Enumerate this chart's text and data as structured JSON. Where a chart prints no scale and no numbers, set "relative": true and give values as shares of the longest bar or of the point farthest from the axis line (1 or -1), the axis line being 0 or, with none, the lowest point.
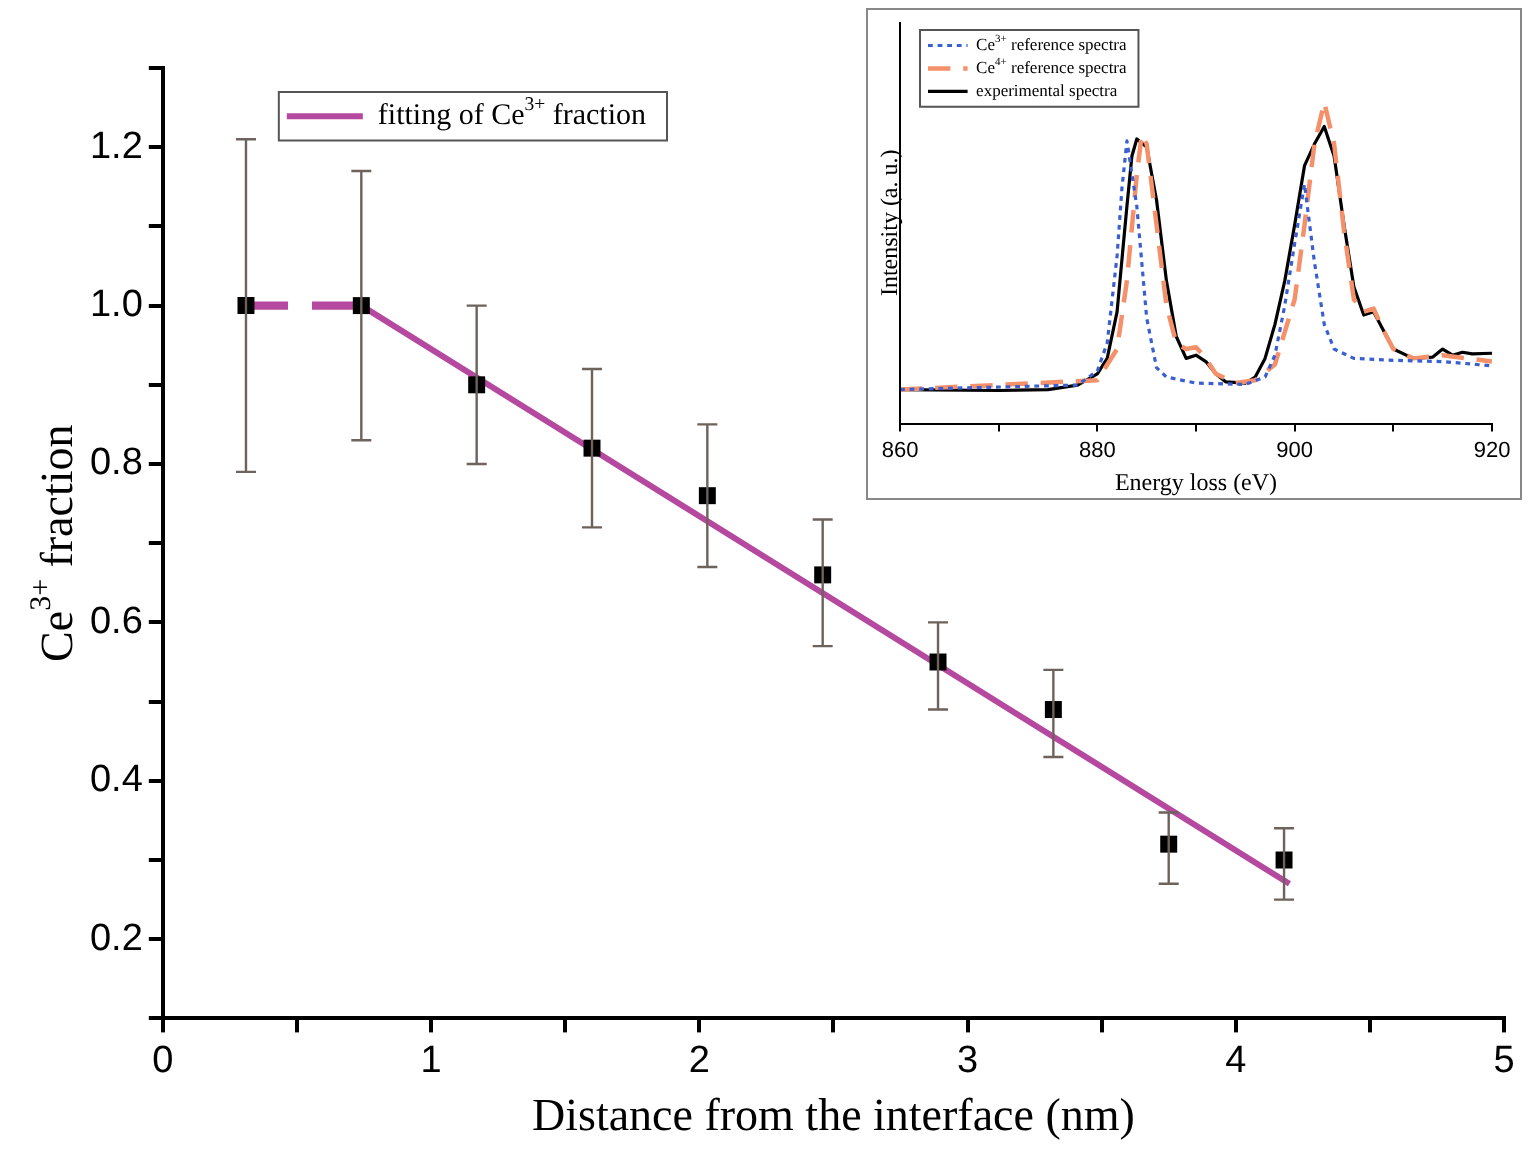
{
  "chart_data": [
    {
      "type": "scatter",
      "xlabel": "Distance from the interface (nm)",
      "ylabel": "Ce$^{3+}$ fraction",
      "xlim": [
        0,
        5
      ],
      "xticks": [
        0,
        {
          "value": 0.5,
          "label": null
        },
        1,
        {
          "value": 1.5,
          "label": null
        },
        2,
        {
          "value": 2.5,
          "label": null
        },
        3,
        {
          "value": 3.5,
          "label": null
        },
        4,
        {
          "value": 4.5,
          "label": null
        },
        5
      ],
      "ylim": [
        0.1,
        1.3
      ],
      "yticks": [
        {
          "value": 0.1,
          "label": null
        },
        0.2,
        {
          "value": 0.3,
          "label": null
        },
        0.4,
        {
          "value": 0.5,
          "label": null
        },
        0.6,
        {
          "value": 0.7,
          "label": null
        },
        0.8,
        {
          "value": 0.9,
          "label": null
        },
        {
          "value": 1,
          "label": "1.0"
        },
        {
          "value": 1.1,
          "label": null
        },
        1.2,
        {
          "value": 1.3,
          "label": null
        }
      ],
      "grid": false,
      "legend": "top left",
      "series": [
        {
          "color": "#000000",
          "marker": "square",
          "x": [
            0.31,
            0.74,
            1.17,
            1.6,
            2.03,
            2.46,
            2.89,
            3.32,
            3.75,
            4.18
          ],
          "values": [
            1.0,
            1.0,
            0.9,
            0.82,
            0.76,
            0.66,
            0.55,
            0.49,
            0.32,
            0.3
          ],
          "errors": [
            [
              0.79,
              1.21
            ],
            [
              0.83,
              1.17
            ],
            [
              0.8,
              1.0
            ],
            [
              0.72,
              0.92
            ],
            [
              0.67,
              0.85
            ],
            [
              0.57,
              0.73
            ],
            [
              0.49,
              0.6
            ],
            [
              0.43,
              0.54
            ],
            [
              0.27,
              0.36
            ],
            [
              0.25,
              0.34
            ]
          ]
        },
        {
          "type": "line",
          "name": "fitting of Ce$^{3+}$ fraction",
          "color": "#b5489f",
          "line_style": "solid",
          "x": [
            0.74,
            4.2
          ],
          "values": [
            1.0,
            0.27
          ]
        },
        {
          "type": "line",
          "color": "#b5489f",
          "line_style": "dashed",
          "x": [
            0.31,
            0.74
          ],
          "values": [
            1.0,
            1.0
          ]
        }
      ]
    },
    {
      "type": "line",
      "xlabel": "Energy loss (eV)",
      "ylabel": "Intensity (a. u.)",
      "relative": true,
      "tick_labels": "x",
      "xlim": [
        860,
        920
      ],
      "xticks": [
        860,
        {
          "value": 870,
          "label": null
        },
        880,
        {
          "value": 890,
          "label": null
        },
        900,
        {
          "value": 910,
          "label": null
        },
        920
      ],
      "grid": false,
      "legend": "top left",
      "series": [
        {
          "name": "Ce$^{3+}$ reference spectra",
          "color": "#3a5fd0",
          "line_style": "dotted",
          "x": [
            860,
            878,
            880,
            881,
            882,
            882.5,
            883,
            884,
            885,
            886,
            887,
            890,
            895,
            897,
            898,
            899,
            900,
            901,
            902,
            903,
            904,
            906,
            910,
            915,
            920
          ],
          "values": [
            0.106,
            0.12,
            0.164,
            0.251,
            0.522,
            0.735,
            0.88,
            0.677,
            0.329,
            0.174,
            0.145,
            0.126,
            0.122,
            0.145,
            0.213,
            0.368,
            0.561,
            0.745,
            0.503,
            0.309,
            0.232,
            0.203,
            0.197,
            0.193,
            0.18
          ]
        },
        {
          "name": "Ce$^{4+}$ reference spectra",
          "color": "#f4906a",
          "line_style": "dashed",
          "x": [
            860,
            880,
            882,
            883,
            884,
            884.5,
            885,
            886,
            887,
            888,
            889,
            890,
            891,
            892,
            894,
            896,
            898,
            900,
            901,
            902,
            903,
            904,
            905,
            906,
            907,
            908,
            909,
            910,
            912,
            915,
            920
          ],
          "values": [
            0.106,
            0.135,
            0.232,
            0.445,
            0.774,
            0.899,
            0.87,
            0.619,
            0.368,
            0.251,
            0.232,
            0.238,
            0.203,
            0.155,
            0.126,
            0.135,
            0.184,
            0.387,
            0.619,
            0.87,
            1.0,
            0.87,
            0.6,
            0.387,
            0.348,
            0.358,
            0.29,
            0.232,
            0.203,
            0.213,
            0.193
          ]
        },
        {
          "name": "experimental spectra",
          "color": "#000000",
          "line_style": "solid",
          "x": [
            860,
            870,
            875,
            878,
            880,
            881,
            882,
            883,
            883.5,
            884,
            885,
            886,
            887,
            888,
            889,
            890,
            891,
            892,
            893,
            895,
            896,
            897,
            898,
            899,
            900,
            901,
            902,
            903,
            904,
            905,
            906,
            907,
            908,
            909,
            910,
            912,
            914,
            915,
            916,
            917,
            918,
            920
          ],
          "values": [
            0.106,
            0.103,
            0.106,
            0.12,
            0.155,
            0.203,
            0.348,
            0.677,
            0.832,
            0.886,
            0.861,
            0.696,
            0.445,
            0.271,
            0.203,
            0.213,
            0.193,
            0.155,
            0.13,
            0.126,
            0.145,
            0.203,
            0.309,
            0.445,
            0.619,
            0.803,
            0.87,
            0.925,
            0.832,
            0.619,
            0.426,
            0.338,
            0.348,
            0.29,
            0.232,
            0.203,
            0.207,
            0.232,
            0.213,
            0.222,
            0.217,
            0.219
          ]
        }
      ]
    }
  ]
}
